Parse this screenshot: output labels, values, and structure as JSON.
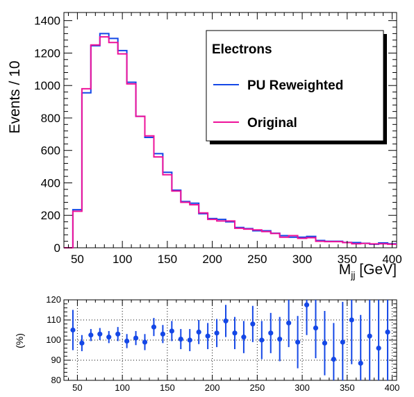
{
  "colors": {
    "reweighted": "#1447e6",
    "original": "#ee1199",
    "ratio": "#1447e6"
  },
  "chart_data": [
    {
      "type": "histogram",
      "ylabel": "Events / 10",
      "xlabel_main": "M",
      "xlabel_sub": "jj",
      "xlabel_unit": " [GeV]",
      "xlim": [
        35,
        405
      ],
      "ylim": [
        0,
        1450
      ],
      "xticks": [
        50,
        100,
        150,
        200,
        250,
        300,
        350,
        400
      ],
      "xtick_labels": [
        "50",
        "100",
        "150",
        "200",
        "250",
        "300",
        "350",
        "400"
      ],
      "yticks": [
        0,
        200,
        400,
        600,
        800,
        1000,
        1200,
        1400
      ],
      "ytick_labels": [
        "0",
        "200",
        "400",
        "600",
        "800",
        "1000",
        "1200",
        "1400"
      ],
      "bin_width": 10,
      "bin_edges_start": 35,
      "legend": {
        "title": "Electrons",
        "placement": "top-right",
        "entries": [
          {
            "label": "PU Reweighted",
            "color": "#1447e6"
          },
          {
            "label": "Original",
            "color": "#ee1199"
          }
        ]
      },
      "series": [
        {
          "name": "PU Reweighted",
          "color": "#1447e6",
          "values": [
            0,
            235,
            955,
            1245,
            1320,
            1290,
            1215,
            1020,
            810,
            680,
            580,
            465,
            355,
            285,
            275,
            210,
            180,
            175,
            160,
            125,
            118,
            105,
            105,
            90,
            75,
            65,
            65,
            70,
            45,
            40,
            40,
            33,
            32,
            28,
            22,
            30,
            25
          ]
        },
        {
          "name": "Original",
          "color": "#ee1199",
          "values": [
            0,
            225,
            980,
            1250,
            1300,
            1265,
            1195,
            1010,
            810,
            690,
            560,
            450,
            350,
            280,
            265,
            215,
            175,
            165,
            165,
            120,
            115,
            110,
            100,
            88,
            65,
            75,
            58,
            62,
            40,
            38,
            38,
            32,
            25,
            27,
            24,
            25,
            22
          ]
        }
      ]
    },
    {
      "type": "scatter",
      "ylabel": "(%)",
      "xlim": [
        35,
        405
      ],
      "ylim": [
        80,
        120
      ],
      "xticks": [
        50,
        100,
        150,
        200,
        250,
        300,
        350,
        400
      ],
      "xtick_labels": [
        "50",
        "100",
        "150",
        "200",
        "250",
        "300",
        "350",
        "400"
      ],
      "yticks": [
        80,
        90,
        100,
        110,
        120
      ],
      "ytick_labels": [
        "80",
        "90",
        "100",
        "110",
        "120"
      ],
      "grid": true,
      "x": [
        45,
        55,
        65,
        75,
        85,
        95,
        105,
        115,
        125,
        135,
        145,
        155,
        165,
        175,
        185,
        195,
        205,
        215,
        225,
        235,
        245,
        255,
        265,
        275,
        285,
        295,
        305,
        315,
        325,
        335,
        345,
        355,
        365,
        375,
        385,
        395
      ],
      "y": [
        105,
        98.5,
        102.5,
        103,
        101.5,
        103,
        99.5,
        101,
        99,
        106.5,
        103,
        104.5,
        100.5,
        100,
        104,
        102,
        103.5,
        109.5,
        103.5,
        101.5,
        108,
        100,
        103.5,
        100.5,
        108.5,
        99,
        117.5,
        106,
        98.5,
        90.5,
        99,
        110,
        88.5,
        102,
        96,
        104
      ],
      "yerr": [
        10,
        4,
        3,
        3,
        3,
        3.5,
        3.5,
        3.5,
        4,
        4.5,
        4.5,
        5,
        5,
        5.5,
        6,
        6.5,
        7,
        8,
        8,
        8,
        9,
        9.5,
        10,
        11,
        12,
        13,
        15,
        15,
        16,
        18,
        20,
        22,
        24,
        26,
        28,
        30
      ]
    }
  ]
}
